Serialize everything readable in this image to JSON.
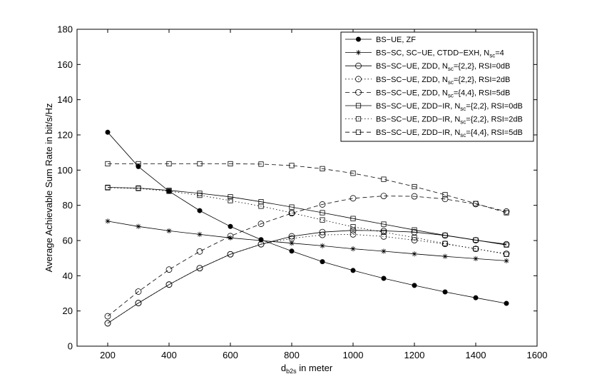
{
  "chart_data": {
    "type": "line",
    "xlabel": "d",
    "xlabel_sub": "b2s",
    "xlabel_rest": " in meter",
    "ylabel": "Average Achievable Sum Rate in bit/s/Hz",
    "xlim": [
      100,
      1600
    ],
    "ylim": [
      0,
      180
    ],
    "xticks": [
      200,
      400,
      600,
      800,
      1000,
      1200,
      1400,
      1600
    ],
    "yticks": [
      0,
      20,
      40,
      60,
      80,
      100,
      120,
      140,
      160,
      180
    ],
    "grid": false,
    "legend_position": "top-right",
    "x": [
      200,
      300,
      400,
      500,
      600,
      700,
      800,
      900,
      1000,
      1100,
      1200,
      1300,
      1400,
      1500
    ],
    "series": [
      {
        "legend": [
          "BS−UE, ZF"
        ],
        "marker": "dot",
        "dash": "solid",
        "values": [
          121.5,
          102,
          88,
          77,
          68,
          60.5,
          54,
          48,
          43,
          38.5,
          34.5,
          30.8,
          27.5,
          24.3
        ]
      },
      {
        "legend": [
          "BS−SC, SC−UE, CTDD−EXH, N",
          "sc",
          "=4"
        ],
        "marker": "star",
        "dash": "solid",
        "values": [
          71,
          68,
          65.5,
          63.5,
          61.5,
          60,
          58.5,
          57,
          55.3,
          53.9,
          52.4,
          51,
          49.7,
          48.5
        ]
      },
      {
        "legend": [
          "BS−SC−UE, ZDD, N",
          "sc",
          "={2,2}, RSI=0dB"
        ],
        "marker": "circle",
        "dash": "solid",
        "values": [
          13,
          24.5,
          35,
          44.3,
          52.2,
          57.9,
          62.4,
          64.8,
          65.8,
          65.5,
          64.8,
          62.9,
          60.2,
          57.9
        ]
      },
      {
        "legend": [
          "BS−SC−UE, ZDD, N",
          "sc",
          "={2,2}, RSI=2dB"
        ],
        "marker": "circle",
        "dash": "dotted",
        "values": [
          13,
          24.5,
          35,
          44.3,
          52.2,
          57.9,
          61.2,
          63.2,
          63.5,
          62.3,
          60.2,
          58.1,
          55.3,
          52.5
        ]
      },
      {
        "legend": [
          "BS−SC−UE, ZDD, N",
          "sc",
          "={4,4}, RSI=5dB"
        ],
        "marker": "circle",
        "dash": "dashed",
        "values": [
          17,
          31,
          43.5,
          53.8,
          62.5,
          69.5,
          75.5,
          80.5,
          84,
          85.3,
          85.1,
          83.6,
          80.7,
          76.5
        ]
      },
      {
        "legend": [
          "BS−SC−UE, ZDD−IR, N",
          "sc",
          "={2,2}, RSI=0dB"
        ],
        "marker": "square",
        "dash": "solid",
        "values": [
          90.2,
          89.8,
          88.5,
          86.8,
          84.8,
          82,
          79,
          75.8,
          72.5,
          69.3,
          66,
          63,
          60.3,
          57.5
        ]
      },
      {
        "legend": [
          "BS−SC−UE, ZDD−IR, N",
          "sc",
          "={2,2}, RSI=2dB"
        ],
        "marker": "square",
        "dash": "dotted",
        "values": [
          90,
          89.6,
          88,
          85.7,
          82.7,
          79.5,
          75.7,
          71.7,
          67.8,
          64.7,
          61.7,
          58.3,
          55.3,
          52.2
        ]
      },
      {
        "legend": [
          "BS−SC−UE, ZDD−IR, N",
          "sc",
          "={4,4}, RSI=5dB"
        ],
        "marker": "square",
        "dash": "dashed",
        "values": [
          103.6,
          103.6,
          103.6,
          103.6,
          103.6,
          103.4,
          102.6,
          100.8,
          98.2,
          94.8,
          90.6,
          86,
          81,
          75.8
        ]
      }
    ]
  }
}
